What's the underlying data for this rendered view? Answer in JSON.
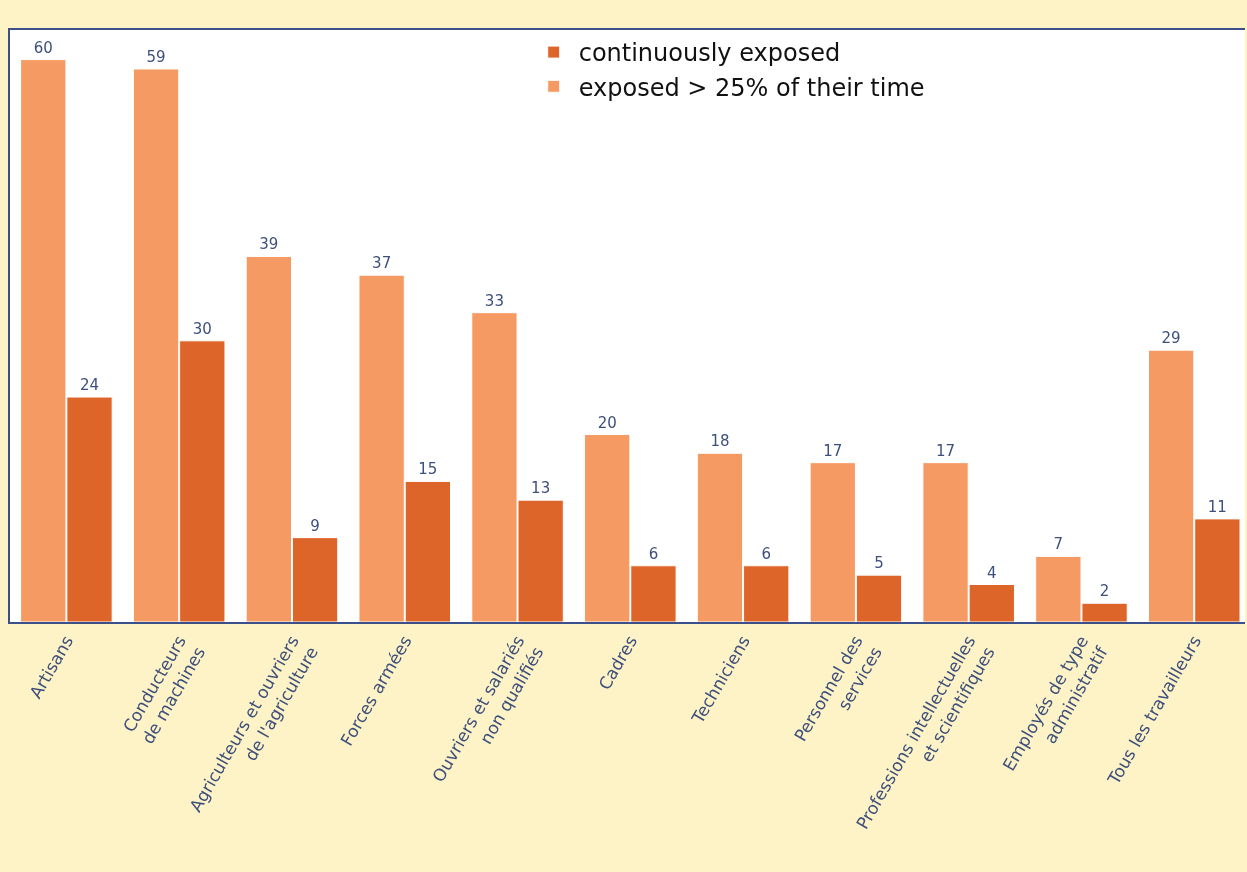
{
  "chart_data": {
    "type": "bar",
    "categories": [
      "Artisans",
      "Conducteurs\nde machines",
      "Agriculteurs et ouvriers\nde l'agriculture",
      "Forces armées",
      "Ouvriers et salariés\nnon qualifiés",
      "Cadres",
      "Techniciens",
      "Personnel des\nservices",
      "Professions intellectuelles\net scientifiques",
      "Employés de type\nadministratif",
      "Tous les travailleurs"
    ],
    "series": [
      {
        "name": "exposed > 25% of their time",
        "color": "#f59a62",
        "values": [
          60,
          59,
          39,
          37,
          33,
          20,
          18,
          17,
          17,
          7,
          29
        ]
      },
      {
        "name": "continuously exposed",
        "color": "#dd6529",
        "values": [
          24,
          30,
          9,
          15,
          13,
          6,
          6,
          5,
          4,
          2,
          11
        ]
      }
    ],
    "data_labels": true,
    "legend": "top right",
    "grid": false
  }
}
